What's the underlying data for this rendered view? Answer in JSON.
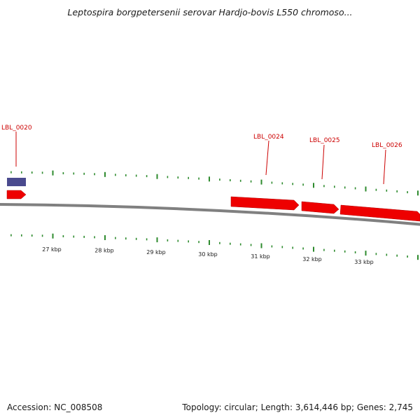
{
  "header": {
    "title": "Leptospira borgpetersenii serovar Hardjo-bovis L550 chromoso..."
  },
  "footer": {
    "accession": "Accession: NC_008508",
    "topology": "Topology: circular; Length: 3,614,446 bp; Genes: 2,745"
  },
  "colors": {
    "backbone": "#808080",
    "gene_forward": "#ee0000",
    "feature_other": "#4a4a8e",
    "tick": "#2e8b2e",
    "gene_label": "#cc0000"
  },
  "scale": {
    "unit": "kbp",
    "tick_labels": [
      "27 kbp",
      "28 kbp",
      "29 kbp",
      "30 kbp",
      "31 kbp",
      "32 kbp",
      "33 kbp"
    ]
  },
  "genes": [
    {
      "label": "LBL_0020",
      "color": "#ee0000",
      "strand": "forward"
    },
    {
      "label": "LBL_0024",
      "color": "#ee0000",
      "strand": "forward"
    },
    {
      "label": "LBL_0025",
      "color": "#ee0000",
      "strand": "forward"
    },
    {
      "label": "LBL_0026",
      "color": "#ee0000",
      "strand": "forward"
    }
  ]
}
